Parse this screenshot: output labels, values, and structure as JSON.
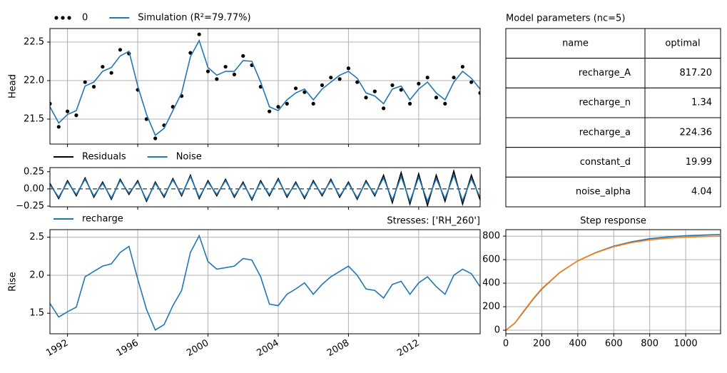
{
  "chart_data": [
    {
      "type": "line",
      "ylabel": "Head",
      "x": [
        1991.0,
        1991.5,
        1992.0,
        1992.5,
        1993.0,
        1993.5,
        1994.0,
        1994.5,
        1995.0,
        1995.5,
        1996.0,
        1996.5,
        1997.0,
        1997.5,
        1998.0,
        1998.5,
        1999.0,
        1999.5,
        2000.0,
        2000.5,
        2001.0,
        2001.5,
        2002.0,
        2002.5,
        2003.0,
        2003.5,
        2004.0,
        2004.5,
        2005.0,
        2005.5,
        2006.0,
        2006.5,
        2007.0,
        2007.5,
        2008.0,
        2008.5,
        2009.0,
        2009.5,
        2010.0,
        2010.5,
        2011.0,
        2011.5,
        2012.0,
        2012.5,
        2013.0,
        2013.5,
        2014.0,
        2014.5,
        2015.0,
        2015.5
      ],
      "series": [
        {
          "name": "0",
          "color": "#000000",
          "style": "dots",
          "values": [
            21.7,
            21.4,
            21.6,
            21.55,
            21.98,
            21.92,
            22.18,
            22.1,
            22.4,
            22.35,
            21.88,
            21.5,
            21.25,
            21.42,
            21.66,
            21.8,
            22.36,
            22.6,
            22.12,
            22.02,
            22.18,
            22.08,
            22.32,
            22.2,
            21.92,
            21.6,
            21.66,
            21.7,
            21.9,
            21.85,
            21.7,
            21.94,
            22.04,
            22.02,
            22.16,
            21.98,
            21.78,
            21.86,
            21.64,
            21.94,
            21.88,
            21.7,
            21.96,
            22.04,
            21.78,
            21.7,
            22.04,
            22.18,
            21.98,
            21.84
          ]
        },
        {
          "name": "Simulation (R²=79.77%)",
          "color": "#1f77b4",
          "style": "line",
          "values": [
            21.66,
            21.45,
            21.56,
            21.61,
            21.93,
            21.98,
            22.12,
            22.17,
            22.32,
            22.38,
            21.93,
            21.56,
            21.29,
            21.38,
            21.61,
            21.84,
            22.31,
            22.52,
            22.17,
            22.07,
            22.12,
            22.12,
            22.26,
            22.25,
            21.98,
            21.66,
            21.61,
            21.75,
            21.84,
            21.89,
            21.75,
            21.89,
            21.98,
            22.07,
            22.12,
            22.03,
            21.84,
            21.8,
            21.7,
            21.89,
            21.93,
            21.75,
            21.89,
            21.98,
            21.84,
            21.75,
            21.98,
            22.12,
            22.03,
            21.89
          ]
        }
      ],
      "xlim": [
        1991.0,
        2015.5
      ],
      "xticks": [
        1992,
        1996,
        2000,
        2004,
        2008,
        2012
      ],
      "show_xtick_labels": false,
      "ylim": [
        21.176,
        22.676
      ],
      "yticks": [
        21.5,
        {
          "value": 22,
          "label": "22.0"
        },
        22.5
      ],
      "grid": true
    },
    {
      "type": "line",
      "x": [
        1991.0,
        1991.5,
        1992.0,
        1992.5,
        1993.0,
        1993.5,
        1994.0,
        1994.5,
        1995.0,
        1995.5,
        1996.0,
        1996.5,
        1997.0,
        1997.5,
        1998.0,
        1998.5,
        1999.0,
        1999.5,
        2000.0,
        2000.5,
        2001.0,
        2001.5,
        2002.0,
        2002.5,
        2003.0,
        2003.5,
        2004.0,
        2004.5,
        2005.0,
        2005.5,
        2006.0,
        2006.5,
        2007.0,
        2007.5,
        2008.0,
        2008.5,
        2009.0,
        2009.5,
        2010.0,
        2010.5,
        2011.0,
        2011.5,
        2012.0,
        2012.5,
        2013.0,
        2013.5,
        2014.0,
        2014.5,
        2015.0,
        2015.5
      ],
      "series": [
        {
          "name": "Residuals",
          "color": "#000000",
          "style": "line",
          "values": [
            0.08,
            -0.14,
            0.12,
            -0.1,
            0.16,
            -0.12,
            0.1,
            -0.15,
            0.14,
            -0.08,
            0.12,
            -0.18,
            0.1,
            -0.12,
            0.15,
            -0.1,
            0.2,
            -0.14,
            0.12,
            -0.1,
            0.14,
            -0.12,
            0.1,
            -0.16,
            0.12,
            -0.1,
            0.15,
            -0.12,
            0.1,
            -0.14,
            0.12,
            -0.1,
            0.14,
            -0.12,
            0.1,
            -0.15,
            0.12,
            -0.1,
            0.2,
            -0.2,
            0.24,
            -0.22,
            0.22,
            -0.24,
            0.2,
            -0.18,
            0.26,
            -0.22,
            0.2,
            -0.16
          ]
        },
        {
          "name": "Noise",
          "color": "#1f77b4",
          "style": "line",
          "values": [
            0.06,
            -0.12,
            0.1,
            -0.08,
            0.14,
            -0.1,
            0.08,
            -0.13,
            0.12,
            -0.06,
            0.1,
            -0.16,
            0.08,
            -0.1,
            0.13,
            -0.08,
            0.18,
            -0.12,
            0.1,
            -0.08,
            0.12,
            -0.1,
            0.08,
            -0.14,
            0.1,
            -0.08,
            0.13,
            -0.1,
            0.08,
            -0.12,
            0.1,
            -0.08,
            0.12,
            -0.1,
            0.08,
            -0.13,
            0.1,
            -0.08,
            0.16,
            -0.16,
            0.18,
            -0.18,
            0.17,
            -0.18,
            0.15,
            -0.14,
            0.2,
            -0.17,
            0.15,
            -0.12
          ]
        }
      ],
      "xlim": [
        1991.0,
        2015.5
      ],
      "xticks": [
        1992,
        1996,
        2000,
        2004,
        2008,
        2012
      ],
      "show_xtick_labels": false,
      "zero_line": true,
      "ylim": [
        -0.26,
        0.31
      ],
      "yticks": [
        0.25,
        {
          "value": 0,
          "label": "0.00"
        },
        {
          "value": -0.25,
          "label": "−0.25"
        }
      ],
      "grid": false
    },
    {
      "type": "line",
      "ylabel": "Rise",
      "title": "Stresses: ['RH_260']",
      "x": [
        1991.0,
        1991.5,
        1992.0,
        1992.5,
        1993.0,
        1993.5,
        1994.0,
        1994.5,
        1995.0,
        1995.5,
        1996.0,
        1996.5,
        1997.0,
        1997.5,
        1998.0,
        1998.5,
        1999.0,
        1999.5,
        2000.0,
        2000.5,
        2001.0,
        2001.5,
        2002.0,
        2002.5,
        2003.0,
        2003.5,
        2004.0,
        2004.5,
        2005.0,
        2005.5,
        2006.0,
        2006.5,
        2007.0,
        2007.5,
        2008.0,
        2008.5,
        2009.0,
        2009.5,
        2010.0,
        2010.5,
        2011.0,
        2011.5,
        2012.0,
        2012.5,
        2013.0,
        2013.5,
        2014.0,
        2014.5,
        2015.0,
        2015.5
      ],
      "series": [
        {
          "name": "recharge",
          "color": "#1f77b4",
          "style": "line",
          "values": [
            1.63,
            1.45,
            1.52,
            1.58,
            1.98,
            2.05,
            2.12,
            2.15,
            2.3,
            2.38,
            1.95,
            1.55,
            1.28,
            1.35,
            1.6,
            1.8,
            2.3,
            2.52,
            2.18,
            2.08,
            2.1,
            2.12,
            2.22,
            2.2,
            1.98,
            1.62,
            1.6,
            1.75,
            1.82,
            1.9,
            1.75,
            1.88,
            1.98,
            2.05,
            2.12,
            2.0,
            1.82,
            1.8,
            1.7,
            1.88,
            1.92,
            1.75,
            1.9,
            1.98,
            1.85,
            1.75,
            2.0,
            2.08,
            2.02,
            1.85
          ]
        }
      ],
      "xlim": [
        1991.0,
        2015.5
      ],
      "xticks": [
        1992,
        1996,
        2000,
        2004,
        2008,
        2012
      ],
      "xtick_rotation": -30,
      "ylim": [
        1.23,
        2.6
      ],
      "yticks": [
        2.5,
        {
          "value": 2,
          "label": "2.0"
        },
        1.5
      ],
      "grid": true
    },
    {
      "type": "table",
      "title": "Model parameters (nc=5)",
      "header": [
        "name",
        "optimal"
      ],
      "rows": [
        [
          "recharge_A",
          "817.20"
        ],
        [
          "recharge_n",
          "1.34"
        ],
        [
          "recharge_a",
          "224.36"
        ],
        [
          "constant_d",
          "19.99"
        ],
        [
          "noise_alpha",
          "4.04"
        ]
      ]
    },
    {
      "type": "line",
      "title": "Step response",
      "x": [
        0,
        50,
        100,
        150,
        200,
        300,
        400,
        500,
        600,
        700,
        800,
        900,
        1000,
        1100,
        1190
      ],
      "series": [
        {
          "color": "#1f77b4",
          "style": "line",
          "values": [
            0,
            60,
            160,
            260,
            350,
            490,
            590,
            660,
            715,
            752,
            778,
            793,
            803,
            809,
            813
          ]
        },
        {
          "color": "#ff7f0e",
          "style": "line",
          "values": [
            0,
            62,
            165,
            265,
            355,
            492,
            590,
            658,
            710,
            745,
            768,
            782,
            791,
            796,
            799
          ]
        }
      ],
      "xlim": [
        0,
        1194
      ],
      "xticks": [
        0,
        200,
        400,
        600,
        800,
        1000
      ],
      "ylim": [
        -30,
        855
      ],
      "yticks": [
        0,
        200,
        400,
        600,
        800
      ],
      "grid": true
    }
  ]
}
